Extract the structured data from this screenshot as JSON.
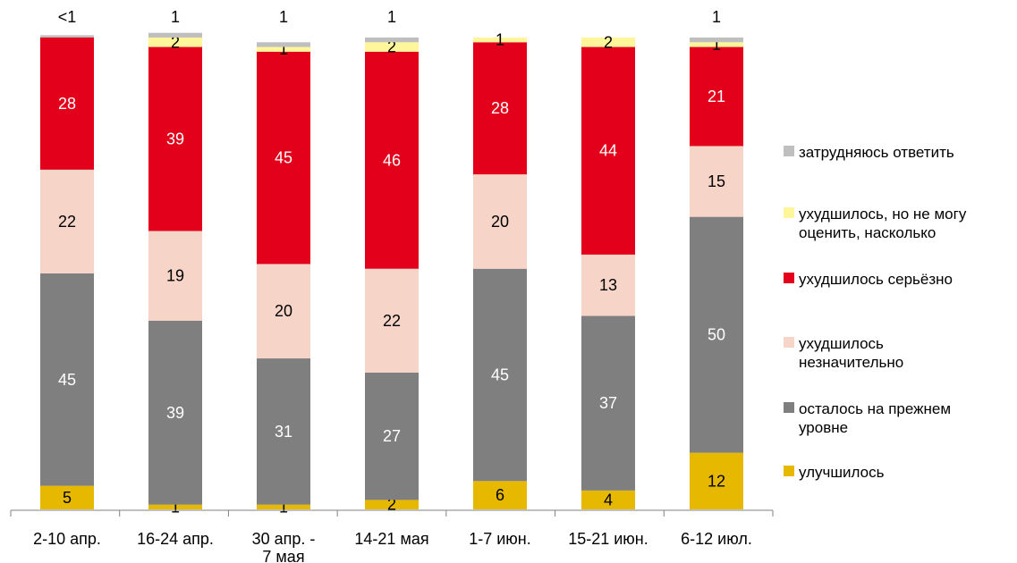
{
  "chart_data": {
    "type": "bar",
    "stacked": true,
    "title": "",
    "xlabel": "",
    "ylabel": "",
    "ylim": [
      0,
      100
    ],
    "grid": false,
    "legend_position": "right",
    "categories": [
      [
        "2-10 апр."
      ],
      [
        "16-24 апр."
      ],
      [
        "30 апр. -",
        "7 мая"
      ],
      [
        "14-21 мая"
      ],
      [
        "1-7 июн."
      ],
      [
        "15-21 июн."
      ],
      [
        "6-12 июл."
      ]
    ],
    "series": [
      {
        "name": "улучшилось",
        "color": "#E6B800",
        "values": [
          5,
          1,
          1,
          2,
          6,
          4,
          12
        ],
        "labels": [
          "5",
          "1",
          "1",
          "2",
          "6",
          "4",
          "12"
        ],
        "label_color": "#000000"
      },
      {
        "name": [
          "осталось на прежнем",
          "уровне"
        ],
        "color": "#7F7F7F",
        "values": [
          45,
          39,
          31,
          27,
          45,
          37,
          50
        ],
        "labels": [
          "45",
          "39",
          "31",
          "27",
          "45",
          "37",
          "50"
        ],
        "label_color": "#FFFFFF"
      },
      {
        "name": [
          "ухудшилось",
          "незначительно"
        ],
        "color": "#F6D5C8",
        "values": [
          22,
          19,
          20,
          22,
          20,
          13,
          15
        ],
        "labels": [
          "22",
          "19",
          "20",
          "22",
          "20",
          "13",
          "15"
        ],
        "label_color": "#000000"
      },
      {
        "name": [
          "ухудшилось серьёзно"
        ],
        "color": "#E2001A",
        "values": [
          28,
          39,
          45,
          46,
          28,
          44,
          21
        ],
        "labels": [
          "28",
          "39",
          "45",
          "46",
          "28",
          "44",
          "21"
        ],
        "label_color": "#FFFFFF"
      },
      {
        "name": [
          "ухудшилось, но не могу",
          "оценить, насколько"
        ],
        "color": "#FFF59A",
        "values": [
          0,
          2,
          1,
          2,
          1,
          2,
          1
        ],
        "labels": [
          "",
          "2",
          "1",
          "2",
          "1",
          "2",
          "1"
        ],
        "label_color": "#000000"
      },
      {
        "name": [
          "затрудняюсь ответить"
        ],
        "color": "#BFBFBF",
        "values": [
          0.5,
          1,
          1,
          1,
          0,
          0,
          1
        ],
        "labels": [
          "<1",
          "1",
          "1",
          "1",
          "",
          "",
          "1"
        ],
        "label_color": "#000000"
      }
    ]
  }
}
